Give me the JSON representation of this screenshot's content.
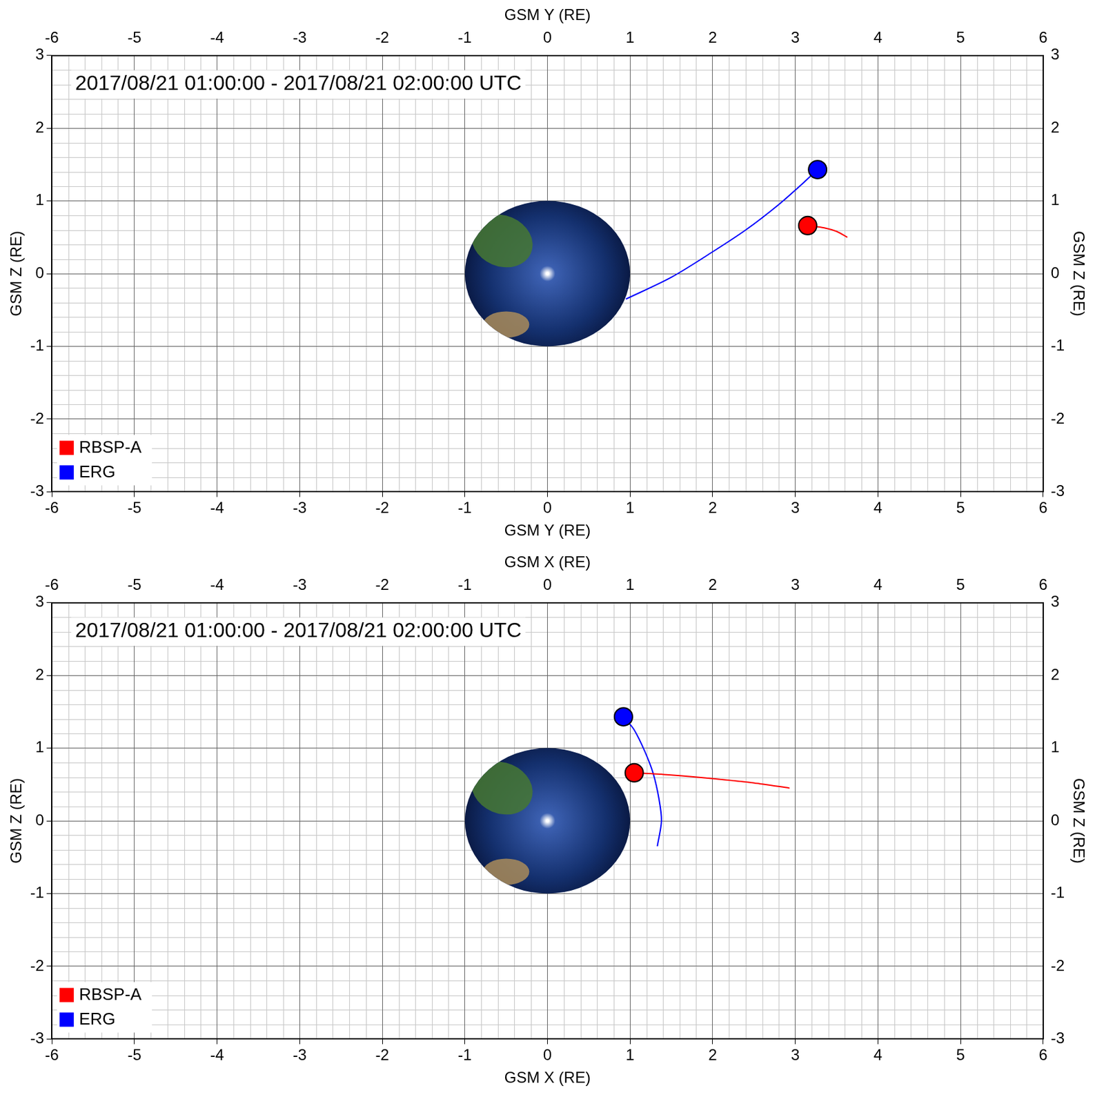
{
  "chart_data": [
    {
      "type": "line",
      "title": "2017/08/21 01:00:00 - 2017/08/21 02:00:00 UTC",
      "xlabel": "GSM Y (RE)",
      "ylabel": "GSM Z (RE)",
      "xlim": [
        -6,
        6
      ],
      "xticks": [
        -6,
        -5,
        -4,
        -3,
        -2,
        -1,
        0,
        1,
        2,
        3,
        4,
        5,
        6
      ],
      "ylim": [
        -3,
        3
      ],
      "yticks": [
        -3,
        -2,
        -1,
        0,
        1,
        2,
        3
      ],
      "grid": true,
      "legend": "lower left",
      "series": [
        {
          "name": "RBSP-A",
          "color": "#ff0000",
          "marker": "circle",
          "x": [
            3.63,
            3.5,
            3.35,
            3.15
          ],
          "values": [
            0.5,
            0.58,
            0.63,
            0.66
          ]
        },
        {
          "name": "ERG",
          "color": "#0000ff",
          "marker": "circle",
          "x": [
            0.95,
            1.5,
            2.0,
            2.4,
            2.8,
            3.1,
            3.27
          ],
          "values": [
            -0.35,
            -0.05,
            0.3,
            0.6,
            0.95,
            1.25,
            1.43
          ]
        }
      ]
    },
    {
      "type": "line",
      "title": "2017/08/21 01:00:00 - 2017/08/21 02:00:00 UTC",
      "xlabel": "GSM X (RE)",
      "ylabel": "GSM Z (RE)",
      "xlim": [
        -6,
        6
      ],
      "xticks": [
        -6,
        -5,
        -4,
        -3,
        -2,
        -1,
        0,
        1,
        2,
        3,
        4,
        5,
        6
      ],
      "ylim": [
        -3,
        3
      ],
      "yticks": [
        -3,
        -2,
        -1,
        0,
        1,
        2,
        3
      ],
      "grid": true,
      "legend": "lower left",
      "series": [
        {
          "name": "RBSP-A",
          "color": "#ff0000",
          "marker": "circle",
          "x": [
            2.93,
            2.5,
            2.0,
            1.5,
            1.05
          ],
          "values": [
            0.45,
            0.52,
            0.58,
            0.63,
            0.66
          ]
        },
        {
          "name": "ERG",
          "color": "#0000ff",
          "marker": "circle",
          "x": [
            1.33,
            1.38,
            1.35,
            1.28,
            1.18,
            1.05,
            0.92
          ],
          "values": [
            -0.35,
            0.0,
            0.3,
            0.65,
            0.95,
            1.25,
            1.43
          ]
        }
      ]
    }
  ]
}
